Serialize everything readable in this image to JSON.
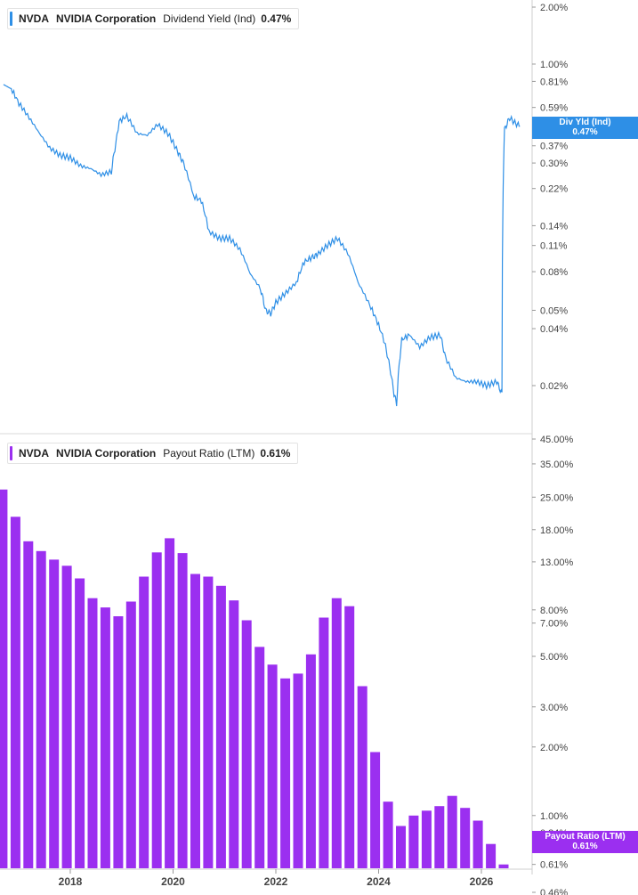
{
  "legend_top": {
    "ticker": "NVDA",
    "company": "NVIDIA Corporation",
    "metric": "Dividend Yield (Ind)",
    "value": "0.47%"
  },
  "legend_bottom": {
    "ticker": "NVDA",
    "company": "NVIDIA Corporation",
    "metric": "Payout Ratio (LTM)",
    "value": "0.61%"
  },
  "flag_top": {
    "label": "Div Yld (Ind)",
    "value": "0.47%"
  },
  "flag_bottom": {
    "label": "Payout Ratio (LTM)",
    "value": "0.61%"
  },
  "colors": {
    "yield": "#2e8fe6",
    "payout": "#9b2ff0",
    "axis": "#cfcfcf"
  },
  "chart_data": [
    {
      "type": "line",
      "scale": "log",
      "series": [
        {
          "name": "Dividend Yield (Ind)",
          "x": [
            2016.7,
            2016.85,
            2017.0,
            2017.2,
            2017.4,
            2017.6,
            2017.8,
            2018.0,
            2018.2,
            2018.4,
            2018.6,
            2018.8,
            2018.9,
            2018.95,
            2019.1,
            2019.3,
            2019.5,
            2019.7,
            2019.9,
            2020.1,
            2020.2,
            2020.4,
            2020.55,
            2020.7,
            2020.9,
            2021.1,
            2021.3,
            2021.5,
            2021.7,
            2021.8,
            2021.9,
            2022.0,
            2022.2,
            2022.4,
            2022.55,
            2022.7,
            2022.8,
            2023.0,
            2023.2,
            2023.4,
            2023.6,
            2023.8,
            2023.95,
            2024.1,
            2024.3,
            2024.35,
            2024.45,
            2024.6,
            2024.8,
            2025.0,
            2025.2,
            2025.3,
            2025.5,
            2025.7,
            2025.9,
            2026.1,
            2026.3,
            2026.4,
            2026.45,
            2026.55,
            2026.65,
            2026.75
          ],
          "y": [
            0.78,
            0.74,
            0.62,
            0.52,
            0.43,
            0.36,
            0.33,
            0.32,
            0.29,
            0.28,
            0.26,
            0.27,
            0.4,
            0.5,
            0.53,
            0.43,
            0.42,
            0.48,
            0.43,
            0.34,
            0.3,
            0.2,
            0.19,
            0.13,
            0.12,
            0.12,
            0.105,
            0.078,
            0.065,
            0.05,
            0.048,
            0.055,
            0.062,
            0.07,
            0.09,
            0.095,
            0.098,
            0.11,
            0.12,
            0.1,
            0.07,
            0.055,
            0.045,
            0.035,
            0.018,
            0.016,
            0.035,
            0.037,
            0.032,
            0.036,
            0.037,
            0.028,
            0.022,
            0.021,
            0.021,
            0.02,
            0.021,
            0.018,
            0.45,
            0.52,
            0.49,
            0.47
          ],
          "last_value": 0.47
        }
      ],
      "y_ticks": [
        "2.00%",
        "1.00%",
        "0.81%",
        "0.59%",
        "0.37%",
        "0.30%",
        "0.22%",
        "0.14%",
        "0.11%",
        "0.08%",
        "0.05%",
        "0.04%",
        "0.02%"
      ],
      "unit": "%"
    },
    {
      "type": "bar",
      "scale": "log",
      "series": [
        {
          "name": "Payout Ratio (LTM)",
          "x": [
            2016.7,
            2016.95,
            2017.2,
            2017.45,
            2017.7,
            2017.95,
            2018.2,
            2018.45,
            2018.7,
            2018.95,
            2019.2,
            2019.45,
            2019.7,
            2019.95,
            2020.2,
            2020.45,
            2020.7,
            2020.95,
            2021.2,
            2021.45,
            2021.7,
            2021.95,
            2022.2,
            2022.45,
            2022.7,
            2022.95,
            2023.2,
            2023.45,
            2023.7,
            2023.95,
            2024.2,
            2024.45,
            2024.7,
            2024.95,
            2025.2,
            2025.45,
            2025.7,
            2025.95,
            2026.2,
            2026.45
          ],
          "values": [
            27.0,
            20.5,
            16.0,
            14.5,
            13.3,
            12.5,
            11.0,
            9.0,
            8.2,
            7.5,
            8.7,
            11.2,
            14.3,
            16.5,
            14.2,
            11.5,
            11.2,
            10.2,
            8.8,
            7.2,
            5.5,
            4.6,
            4.0,
            4.2,
            5.1,
            7.4,
            9.0,
            8.3,
            3.7,
            1.9,
            1.15,
            0.9,
            1.0,
            1.05,
            1.1,
            1.22,
            1.08,
            0.95,
            0.75,
            0.61
          ],
          "last_value": 0.61
        }
      ],
      "y_ticks": [
        "45.00%",
        "35.00%",
        "25.00%",
        "18.00%",
        "13.00%",
        "8.00%",
        "7.00%",
        "5.00%",
        "3.00%",
        "2.00%",
        "1.00%",
        "0.84%",
        "0.61%",
        "0.46%"
      ],
      "unit": "%"
    }
  ],
  "x_ticks": [
    "2018",
    "2020",
    "2022",
    "2024",
    "2026"
  ]
}
